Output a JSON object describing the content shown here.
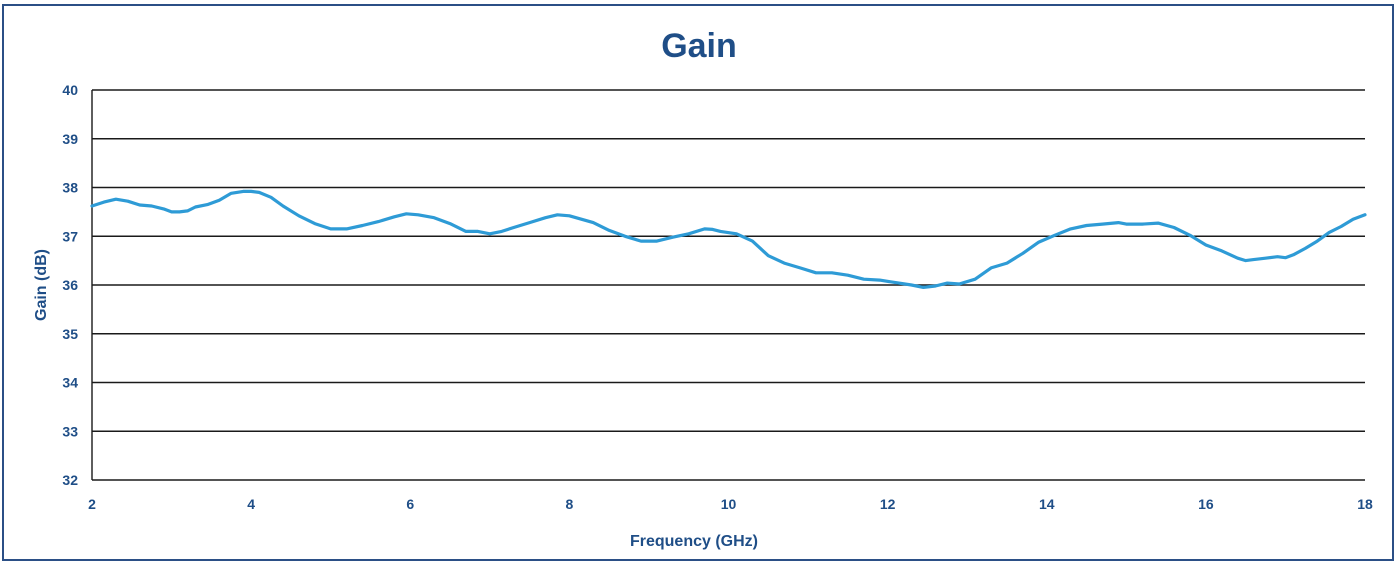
{
  "chart_data": {
    "type": "line",
    "title": "Gain",
    "xlabel": "Frequency (GHz)",
    "ylabel": "Gain (dB)",
    "xlim": [
      2,
      18
    ],
    "ylim": [
      32,
      40
    ],
    "xticks": [
      "2",
      "4",
      "6",
      "8",
      "10",
      "12",
      "14",
      "16",
      "18"
    ],
    "yticks": [
      "32",
      "33",
      "34",
      "35",
      "36",
      "37",
      "38",
      "39",
      "40"
    ],
    "grid": "horizontal",
    "series_color": "#2e9bd6",
    "series": [
      {
        "x": [
          2.0,
          2.15,
          2.3,
          2.45,
          2.6,
          2.75,
          2.9,
          3.0,
          3.1,
          3.2,
          3.3,
          3.45,
          3.6,
          3.75,
          3.9,
          4.0,
          4.1,
          4.25,
          4.4,
          4.6,
          4.8,
          5.0,
          5.2,
          5.4,
          5.6,
          5.8,
          5.95,
          6.1,
          6.3,
          6.5,
          6.7,
          6.85,
          7.0,
          7.15,
          7.3,
          7.5,
          7.7,
          7.85,
          8.0,
          8.15,
          8.3,
          8.5,
          8.7,
          8.9,
          9.1,
          9.3,
          9.5,
          9.7,
          9.8,
          9.9,
          10.1,
          10.3,
          10.5,
          10.7,
          10.9,
          11.1,
          11.3,
          11.5,
          11.7,
          11.9,
          12.1,
          12.3,
          12.45,
          12.6,
          12.75,
          12.9,
          13.1,
          13.3,
          13.5,
          13.7,
          13.9,
          14.1,
          14.3,
          14.5,
          14.7,
          14.9,
          15.0,
          15.2,
          15.4,
          15.6,
          15.8,
          16.0,
          16.2,
          16.4,
          16.5,
          16.6,
          16.75,
          16.9,
          17.0,
          17.1,
          17.25,
          17.4,
          17.55,
          17.7,
          17.85,
          18.0
        ],
        "y": [
          37.62,
          37.7,
          37.76,
          37.72,
          37.64,
          37.62,
          37.56,
          37.5,
          37.5,
          37.52,
          37.6,
          37.65,
          37.74,
          37.88,
          37.92,
          37.92,
          37.9,
          37.8,
          37.62,
          37.42,
          37.26,
          37.15,
          37.15,
          37.22,
          37.3,
          37.4,
          37.46,
          37.44,
          37.38,
          37.26,
          37.1,
          37.1,
          37.05,
          37.1,
          37.18,
          37.28,
          37.38,
          37.44,
          37.42,
          37.35,
          37.28,
          37.12,
          37.0,
          36.9,
          36.9,
          36.98,
          37.05,
          37.15,
          37.14,
          37.1,
          37.05,
          36.9,
          36.6,
          36.45,
          36.35,
          36.25,
          36.25,
          36.2,
          36.12,
          36.1,
          36.05,
          36.0,
          35.95,
          35.98,
          36.04,
          36.02,
          36.12,
          36.35,
          36.45,
          36.65,
          36.88,
          37.02,
          37.15,
          37.22,
          37.25,
          37.28,
          37.25,
          37.25,
          37.27,
          37.18,
          37.02,
          36.82,
          36.7,
          36.55,
          36.5,
          36.52,
          36.55,
          36.58,
          36.56,
          36.62,
          36.75,
          36.9,
          37.08,
          37.2,
          37.35,
          37.44
        ]
      }
    ]
  }
}
